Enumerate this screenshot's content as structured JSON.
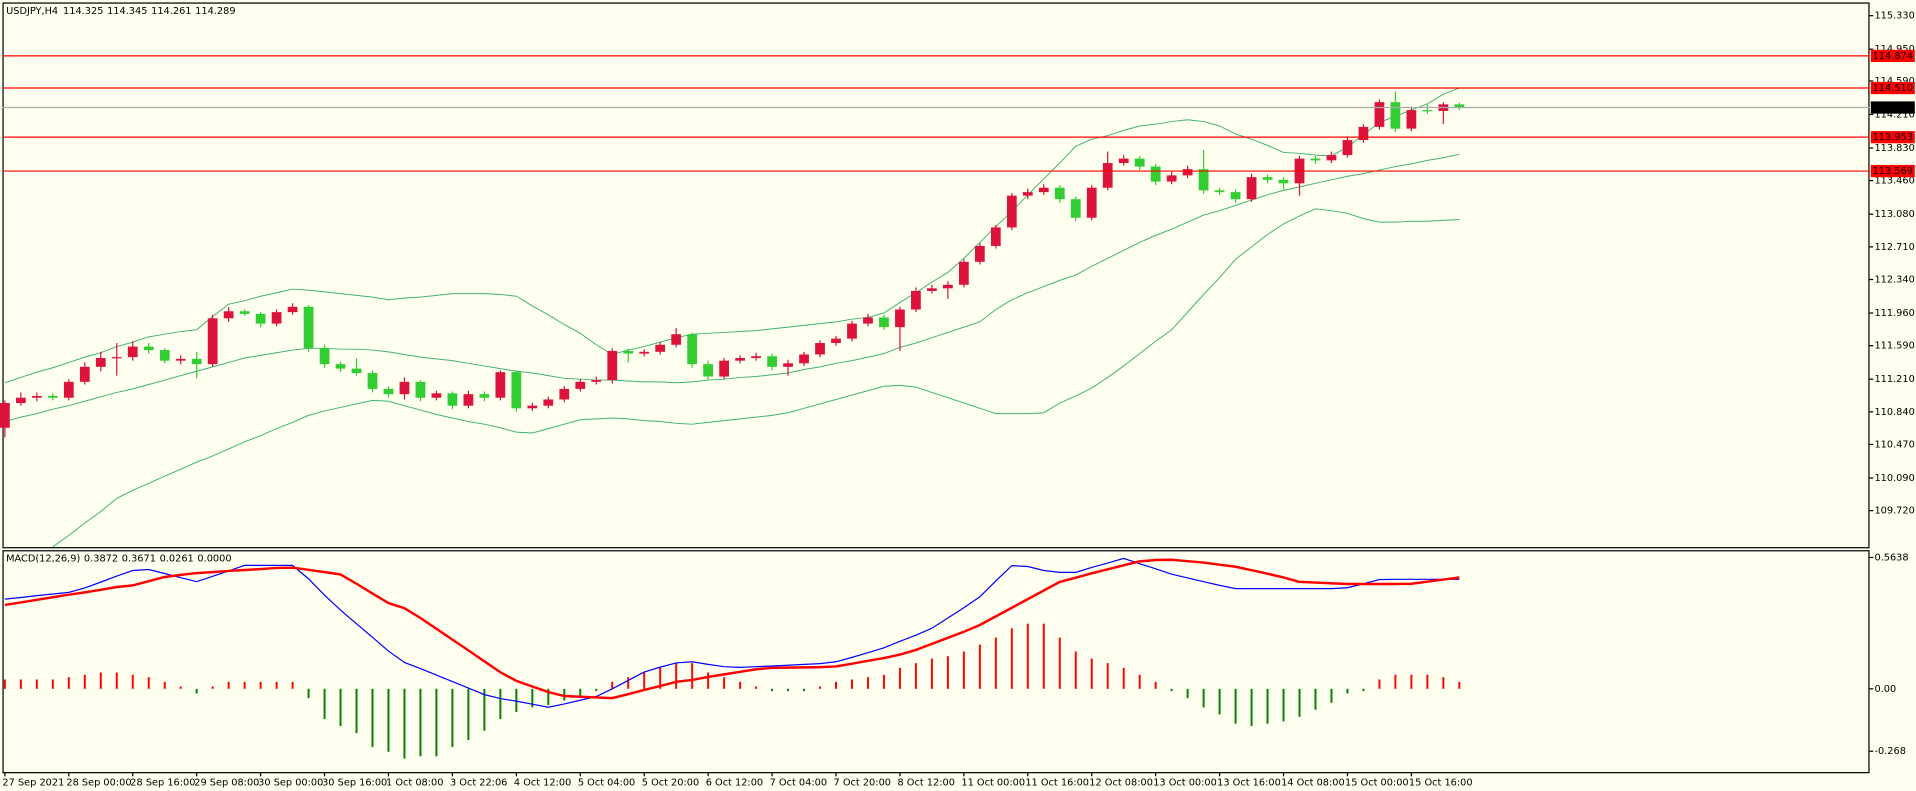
{
  "chart_data": [
    {
      "type": "candlestick",
      "symbol": "USDJPY,H4",
      "categories": [
        "27 Sep 2021",
        null,
        null,
        null,
        "28 Sep 00:00",
        null,
        null,
        null,
        "28 Sep 16:00",
        null,
        null,
        null,
        "29 Sep 08:00",
        null,
        null,
        null,
        "30 Sep 00:00",
        null,
        null,
        null,
        "30 Sep 16:00",
        null,
        null,
        null,
        "1 Oct 08:00",
        null,
        null,
        null,
        "3 Oct 22:06",
        null,
        null,
        null,
        "4 Oct 12:00",
        null,
        null,
        null,
        "5 Oct 04:00",
        null,
        null,
        null,
        "5 Oct 20:00",
        null,
        null,
        null,
        "6 Oct 12:00",
        null,
        null,
        null,
        "7 Oct 04:00",
        null,
        null,
        null,
        "7 Oct 20:00",
        null,
        null,
        null,
        "8 Oct 12:00",
        null,
        null,
        null,
        "11 Oct 00:00",
        null,
        null,
        null,
        "11 Oct 16:00",
        null,
        null,
        null,
        "12 Oct 08:00",
        null,
        null,
        null,
        "13 Oct 00:00",
        null,
        null,
        null,
        "13 Oct 16:00",
        null,
        null,
        null,
        "14 Oct 08:00",
        null,
        null,
        null,
        "15 Oct 00:00",
        null,
        null,
        null,
        "15 Oct 16:00",
        null,
        null,
        null
      ],
      "candles": {
        "open": [
          110.66,
          110.94,
          111.0,
          111.02,
          111.0,
          111.18,
          111.35,
          111.45,
          111.46,
          111.58,
          111.54,
          111.42,
          111.44,
          111.38,
          111.9,
          111.98,
          111.95,
          111.84,
          111.97,
          112.03,
          111.56,
          111.38,
          111.33,
          111.28,
          111.1,
          111.04,
          111.18,
          111.0,
          111.05,
          110.91,
          111.04,
          111.0,
          111.29,
          110.88,
          110.91,
          110.98,
          111.1,
          111.18,
          111.2,
          111.53,
          111.5,
          111.52,
          111.6,
          111.72,
          111.38,
          111.24,
          111.42,
          111.45,
          111.47,
          111.35,
          111.39,
          111.49,
          111.62,
          111.67,
          111.84,
          111.91,
          111.8,
          112.0,
          112.21,
          112.24,
          112.28,
          112.54,
          112.72,
          112.93,
          113.29,
          113.33,
          113.38,
          113.25,
          113.04,
          113.38,
          113.66,
          113.71,
          113.62,
          113.45,
          113.52,
          113.59,
          113.35,
          113.33,
          113.25,
          113.5,
          113.47,
          113.43,
          113.71,
          113.69,
          113.75,
          113.92,
          114.07,
          114.35,
          114.05,
          114.26,
          114.25,
          114.325
        ],
        "high": [
          110.97,
          111.06,
          111.06,
          111.05,
          111.21,
          111.4,
          111.52,
          111.62,
          111.64,
          111.62,
          111.56,
          111.48,
          111.52,
          111.94,
          112.03,
          112.0,
          111.97,
          112.0,
          112.07,
          112.05,
          111.6,
          111.41,
          111.45,
          111.31,
          111.13,
          111.23,
          111.2,
          111.08,
          111.07,
          111.08,
          111.07,
          111.31,
          111.31,
          110.94,
          111.01,
          111.13,
          111.21,
          111.24,
          111.56,
          111.56,
          111.55,
          111.63,
          111.79,
          111.74,
          111.42,
          111.45,
          111.48,
          111.51,
          111.5,
          111.43,
          111.52,
          111.65,
          111.7,
          111.87,
          111.95,
          111.94,
          112.03,
          112.25,
          112.28,
          112.32,
          112.57,
          112.75,
          112.96,
          113.32,
          113.37,
          113.42,
          113.41,
          113.28,
          113.41,
          113.79,
          113.75,
          113.74,
          113.65,
          113.56,
          113.63,
          113.81,
          113.38,
          113.36,
          113.54,
          113.53,
          113.5,
          113.74,
          113.74,
          113.79,
          113.95,
          114.1,
          114.38,
          114.47,
          114.29,
          114.32,
          114.35,
          114.345
        ],
        "low": [
          110.55,
          110.91,
          110.96,
          110.97,
          110.97,
          111.15,
          111.3,
          111.25,
          111.42,
          111.5,
          111.39,
          111.38,
          111.22,
          111.35,
          111.86,
          111.93,
          111.8,
          111.81,
          111.94,
          111.52,
          111.34,
          111.29,
          111.25,
          111.06,
          111.0,
          110.98,
          110.96,
          110.97,
          110.87,
          110.88,
          110.96,
          110.97,
          110.84,
          110.85,
          110.88,
          110.95,
          111.07,
          111.15,
          111.16,
          111.4,
          111.47,
          111.49,
          111.57,
          111.34,
          111.2,
          111.21,
          111.39,
          111.42,
          111.31,
          111.25,
          111.36,
          111.46,
          111.59,
          111.64,
          111.81,
          111.77,
          111.53,
          111.97,
          112.18,
          112.12,
          112.25,
          112.51,
          112.69,
          112.9,
          113.25,
          113.3,
          113.21,
          113.0,
          113.01,
          113.35,
          113.63,
          113.58,
          113.41,
          113.42,
          113.49,
          113.31,
          113.3,
          113.21,
          113.22,
          113.43,
          113.36,
          113.29,
          113.65,
          113.66,
          113.72,
          113.89,
          114.04,
          114.01,
          114.02,
          114.22,
          114.1,
          114.261
        ],
        "close": [
          110.94,
          111.0,
          111.02,
          111.0,
          111.18,
          111.35,
          111.45,
          111.46,
          111.58,
          111.54,
          111.42,
          111.44,
          111.38,
          111.9,
          111.98,
          111.95,
          111.84,
          111.97,
          112.03,
          111.56,
          111.38,
          111.33,
          111.28,
          111.1,
          111.04,
          111.18,
          111.0,
          111.05,
          110.91,
          111.04,
          111.0,
          111.29,
          110.88,
          110.91,
          110.98,
          111.1,
          111.18,
          111.2,
          111.53,
          111.5,
          111.52,
          111.6,
          111.72,
          111.38,
          111.24,
          111.42,
          111.45,
          111.47,
          111.35,
          111.39,
          111.49,
          111.62,
          111.67,
          111.84,
          111.91,
          111.8,
          112.0,
          112.21,
          112.24,
          112.28,
          112.54,
          112.72,
          112.93,
          113.29,
          113.33,
          113.38,
          113.25,
          113.04,
          113.38,
          113.66,
          113.71,
          113.62,
          113.45,
          113.52,
          113.59,
          113.35,
          113.33,
          113.25,
          113.5,
          113.47,
          113.43,
          113.71,
          113.69,
          113.75,
          113.92,
          114.07,
          114.35,
          114.05,
          114.26,
          114.25,
          114.325,
          114.289
        ]
      },
      "up_color": "#dc143c",
      "down_color": "#32cd32",
      "bands": {
        "color": "#3cb371",
        "upper": [
          111.17,
          111.23,
          111.29,
          111.34,
          111.4,
          111.46,
          111.51,
          111.58,
          111.63,
          111.69,
          111.72,
          111.75,
          111.77,
          111.92,
          112.06,
          112.1,
          112.15,
          112.19,
          112.23,
          112.22,
          112.2,
          112.18,
          112.16,
          112.14,
          112.11,
          112.13,
          112.14,
          112.16,
          112.18,
          112.18,
          112.18,
          112.17,
          112.15,
          112.04,
          111.94,
          111.83,
          111.73,
          111.6,
          111.49,
          111.54,
          111.58,
          111.63,
          111.68,
          111.72,
          111.73,
          111.74,
          111.75,
          111.76,
          111.78,
          111.8,
          111.82,
          111.84,
          111.86,
          111.89,
          111.91,
          111.96,
          112.08,
          112.19,
          112.31,
          112.42,
          112.58,
          112.76,
          112.94,
          113.11,
          113.3,
          113.48,
          113.66,
          113.85,
          113.93,
          113.97,
          114.03,
          114.08,
          114.1,
          114.13,
          114.15,
          114.13,
          114.08,
          113.99,
          113.93,
          113.86,
          113.78,
          113.77,
          113.75,
          113.74,
          113.84,
          113.98,
          114.12,
          114.19,
          114.26,
          114.33,
          114.44,
          114.51
        ],
        "middle": [
          110.73,
          110.78,
          110.82,
          110.87,
          110.91,
          110.96,
          111.01,
          111.06,
          111.1,
          111.15,
          111.2,
          111.25,
          111.3,
          111.35,
          111.4,
          111.45,
          111.48,
          111.51,
          111.54,
          111.56,
          111.56,
          111.55,
          111.55,
          111.54,
          111.52,
          111.49,
          111.46,
          111.44,
          111.42,
          111.39,
          111.36,
          111.33,
          111.3,
          111.28,
          111.25,
          111.22,
          111.21,
          111.2,
          111.2,
          111.19,
          111.18,
          111.18,
          111.17,
          111.18,
          111.2,
          111.21,
          111.23,
          111.24,
          111.26,
          111.28,
          111.32,
          111.35,
          111.39,
          111.42,
          111.46,
          111.5,
          111.57,
          111.62,
          111.68,
          111.74,
          111.8,
          111.86,
          112.0,
          112.11,
          112.19,
          112.26,
          112.33,
          112.39,
          112.49,
          112.58,
          112.67,
          112.76,
          112.84,
          112.91,
          112.99,
          113.07,
          113.12,
          113.18,
          113.24,
          113.3,
          113.35,
          113.39,
          113.43,
          113.47,
          113.51,
          113.54,
          113.58,
          113.62,
          113.65,
          113.69,
          113.72,
          113.76
        ],
        "lower": [
          null,
          null,
          null,
          109.31,
          109.44,
          109.58,
          109.71,
          109.86,
          109.95,
          110.03,
          110.11,
          110.19,
          110.27,
          110.34,
          110.42,
          110.5,
          110.57,
          110.65,
          110.72,
          110.8,
          110.85,
          110.89,
          110.93,
          110.97,
          110.96,
          110.91,
          110.86,
          110.81,
          110.77,
          110.73,
          110.7,
          110.66,
          110.61,
          110.6,
          110.65,
          110.7,
          110.75,
          110.76,
          110.77,
          110.76,
          110.74,
          110.73,
          110.71,
          110.7,
          110.72,
          110.74,
          110.76,
          110.78,
          110.8,
          110.83,
          110.88,
          110.93,
          110.98,
          111.03,
          111.08,
          111.13,
          111.14,
          111.12,
          111.06,
          111.0,
          110.94,
          110.88,
          110.82,
          110.82,
          110.82,
          110.83,
          110.94,
          111.02,
          111.11,
          111.23,
          111.36,
          111.5,
          111.64,
          111.77,
          111.97,
          112.17,
          112.36,
          112.57,
          112.71,
          112.85,
          112.97,
          113.06,
          113.14,
          113.12,
          113.09,
          113.03,
          112.99,
          112.99,
          113.0,
          113.0,
          113.01,
          113.02
        ]
      },
      "ylim": [
        109.3,
        115.48
      ],
      "yticks": [
        {
          "value": 115.33,
          "label": "115.330"
        },
        {
          "value": 114.95,
          "label": "114.950"
        },
        {
          "value": 114.59,
          "label": "114.590"
        },
        {
          "value": 114.21,
          "label": "114.210"
        },
        {
          "value": 113.83,
          "label": "113.830"
        },
        {
          "value": 113.46,
          "label": "113.460"
        },
        {
          "value": 113.08,
          "label": "113.080"
        },
        {
          "value": 112.71,
          "label": "112.710"
        },
        {
          "value": 112.34,
          "label": "112.340"
        },
        {
          "value": 111.96,
          "label": "111.960"
        },
        {
          "value": 111.59,
          "label": "111.590"
        },
        {
          "value": 111.21,
          "label": "111.210"
        },
        {
          "value": 110.84,
          "label": "110.840"
        },
        {
          "value": 110.47,
          "label": "110.470"
        },
        {
          "value": 110.09,
          "label": "110.090"
        },
        {
          "value": 109.72,
          "label": "109.720"
        }
      ],
      "levels": [
        114.874,
        {
          "value": 114.51,
          "label": "114.510"
        },
        113.953,
        113.569
      ],
      "level_color": "#ff0000",
      "last_price_color": "#a9a9a9"
    },
    {
      "type": "macd",
      "label": "MACD(12,26,9)",
      "readout": [
        "0.3872",
        "0.3671",
        "0.0261",
        "0.0000"
      ],
      "histogram": [
        0.04,
        0.04,
        0.04,
        0.04,
        0.05,
        0.06,
        0.07,
        0.07,
        0.06,
        0.05,
        0.03,
        0.01,
        -0.02,
        0.01,
        0.03,
        0.03,
        0.03,
        0.03,
        0.03,
        -0.04,
        -0.13,
        -0.16,
        -0.19,
        -0.25,
        -0.27,
        -0.3,
        -0.29,
        -0.29,
        -0.25,
        -0.22,
        -0.18,
        -0.13,
        -0.1,
        -0.08,
        -0.07,
        -0.05,
        -0.03,
        -0.01,
        0.03,
        0.05,
        0.07,
        0.09,
        0.11,
        0.11,
        0.07,
        0.05,
        0.03,
        0.01,
        -0.01,
        -0.01,
        -0.01,
        0.01,
        0.03,
        0.04,
        0.05,
        0.06,
        0.09,
        0.11,
        0.13,
        0.14,
        0.16,
        0.19,
        0.22,
        0.26,
        0.28,
        0.28,
        0.22,
        0.16,
        0.13,
        0.11,
        0.09,
        0.06,
        0.03,
        -0.01,
        -0.04,
        -0.08,
        -0.11,
        -0.15,
        -0.16,
        -0.15,
        -0.14,
        -0.12,
        -0.09,
        -0.06,
        -0.02,
        -0.01,
        0.04,
        0.06,
        0.06,
        0.06,
        0.05,
        0.03
      ],
      "macd": [
        0.385,
        0.392,
        0.4,
        0.407,
        0.414,
        0.433,
        0.458,
        0.484,
        0.508,
        0.512,
        0.495,
        0.477,
        0.46,
        0.483,
        0.506,
        0.53,
        0.53,
        0.53,
        0.53,
        0.472,
        0.402,
        0.338,
        0.279,
        0.221,
        0.162,
        0.113,
        0.087,
        0.059,
        0.031,
        0.003,
        -0.025,
        -0.042,
        -0.053,
        -0.066,
        -0.079,
        -0.065,
        -0.049,
        -0.033,
        0.0,
        0.036,
        0.072,
        0.093,
        0.111,
        0.116,
        0.105,
        0.095,
        0.092,
        0.095,
        0.098,
        0.101,
        0.105,
        0.108,
        0.116,
        0.135,
        0.155,
        0.176,
        0.204,
        0.23,
        0.26,
        0.304,
        0.348,
        0.395,
        0.463,
        0.529,
        0.525,
        0.508,
        0.5,
        0.5,
        0.521,
        0.54,
        0.56,
        0.537,
        0.515,
        0.492,
        0.476,
        0.46,
        0.444,
        0.43,
        0.43,
        0.43,
        0.43,
        0.43,
        0.43,
        0.43,
        0.434,
        0.451,
        0.469,
        0.47,
        0.47,
        0.47,
        0.47,
        0.47
      ],
      "signal": [
        0.36,
        0.371,
        0.382,
        0.393,
        0.404,
        0.414,
        0.425,
        0.437,
        0.444,
        0.462,
        0.48,
        0.489,
        0.497,
        0.501,
        0.506,
        0.51,
        0.514,
        0.519,
        0.52,
        0.511,
        0.501,
        0.491,
        0.451,
        0.409,
        0.368,
        0.346,
        0.304,
        0.258,
        0.211,
        0.165,
        0.118,
        0.071,
        0.034,
        0.01,
        -0.014,
        -0.031,
        -0.034,
        -0.037,
        -0.04,
        -0.023,
        -0.005,
        0.012,
        0.03,
        0.038,
        0.051,
        0.062,
        0.073,
        0.084,
        0.09,
        0.091,
        0.092,
        0.093,
        0.096,
        0.108,
        0.12,
        0.132,
        0.147,
        0.167,
        0.193,
        0.219,
        0.245,
        0.274,
        0.311,
        0.348,
        0.385,
        0.422,
        0.459,
        0.477,
        0.496,
        0.513,
        0.53,
        0.547,
        0.553,
        0.554,
        0.548,
        0.542,
        0.533,
        0.524,
        0.509,
        0.494,
        0.478,
        0.459,
        0.456,
        0.453,
        0.45,
        0.45,
        0.45,
        0.45,
        0.451,
        0.46,
        0.469,
        0.478
      ],
      "macd_color": "#0000ff",
      "signal_color": "#ff0000",
      "positive_color": "#ff0000",
      "negative_color": "#008000",
      "ylim": [
        -0.36,
        0.59
      ],
      "yticks": [
        0.5638,
        {
          "value": 0,
          "label": "0.00"
        },
        -0.268
      ]
    }
  ]
}
